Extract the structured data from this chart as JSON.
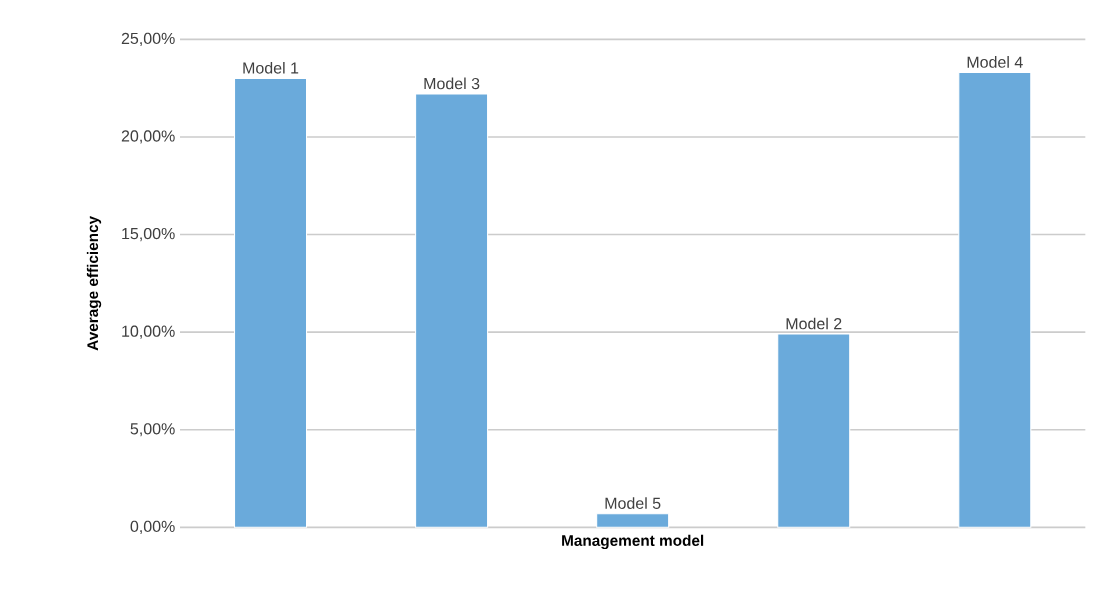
{
  "chart_data": {
    "type": "bar",
    "xlabel": "Management model",
    "ylabel": "Average efficiency",
    "categories": [
      "Model 1",
      "Model 3",
      "Model 5",
      "Model 2",
      "Model 4"
    ],
    "values": [
      23.0,
      22.2,
      0.7,
      9.9,
      23.3
    ],
    "color": "#6aaadb",
    "ylim": [
      0,
      25
    ],
    "yticks": [
      {
        "value": 0,
        "label": "0,00%"
      },
      {
        "value": 5,
        "label": "5,00%"
      },
      {
        "value": 10,
        "label": "10,00%"
      },
      {
        "value": 15,
        "label": "15,00%"
      },
      {
        "value": 20,
        "label": "20,00%"
      },
      {
        "value": 25,
        "label": "25,00%"
      }
    ],
    "grid": "y"
  }
}
